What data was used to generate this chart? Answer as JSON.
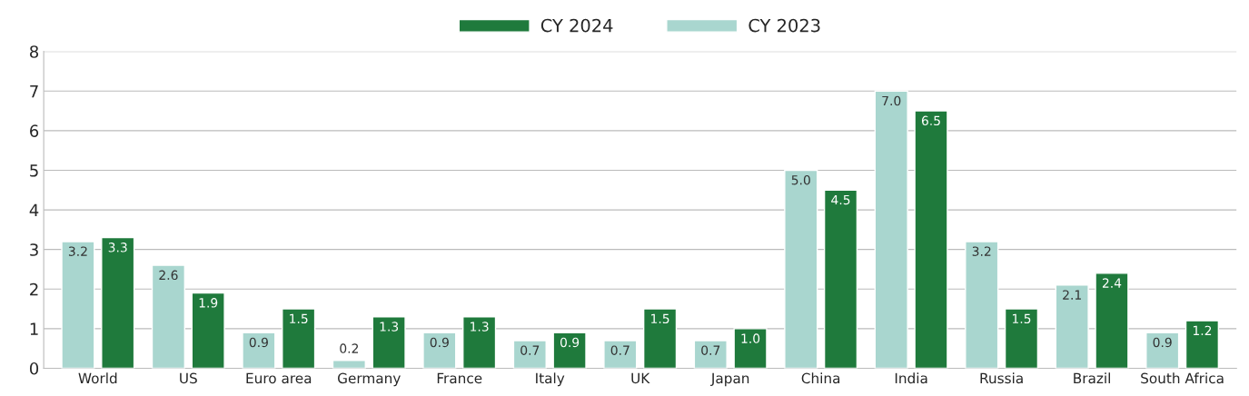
{
  "chart_data": {
    "type": "bar",
    "categories": [
      "World",
      "US",
      "Euro area",
      "Germany",
      "France",
      "Italy",
      "UK",
      "Japan",
      "China",
      "India",
      "Russia",
      "Brazil",
      "South Africa"
    ],
    "series": [
      {
        "name": "CY 2024",
        "color": "#1f7a3c",
        "values": [
          3.3,
          1.9,
          1.5,
          1.3,
          1.3,
          0.9,
          1.5,
          1.0,
          4.5,
          6.5,
          1.5,
          2.4,
          1.2
        ],
        "value_labels": [
          "3.3",
          "1.9",
          "1.5",
          "1.3",
          "1.3",
          "0.9",
          "1.5",
          "1.0",
          "4.5",
          "6.5",
          "1.5",
          "2.4",
          "1.2"
        ]
      },
      {
        "name": "CY 2023",
        "color": "#a9d6cf",
        "values": [
          3.2,
          2.6,
          0.9,
          0.2,
          0.9,
          0.7,
          0.7,
          0.7,
          5.0,
          7.0,
          3.2,
          2.1,
          0.9
        ],
        "value_labels": [
          "3.2",
          "2.6",
          "0.9",
          "0.2",
          "0.9",
          "0.7",
          "0.7",
          "0.7",
          "5.0",
          "7.0",
          "3.2",
          "2.1",
          "0.9"
        ]
      }
    ],
    "ylim": [
      0,
      8
    ],
    "yticks": [
      0,
      1,
      2,
      3,
      4,
      5,
      6,
      7,
      8
    ],
    "grid": "y",
    "legend": "top"
  }
}
